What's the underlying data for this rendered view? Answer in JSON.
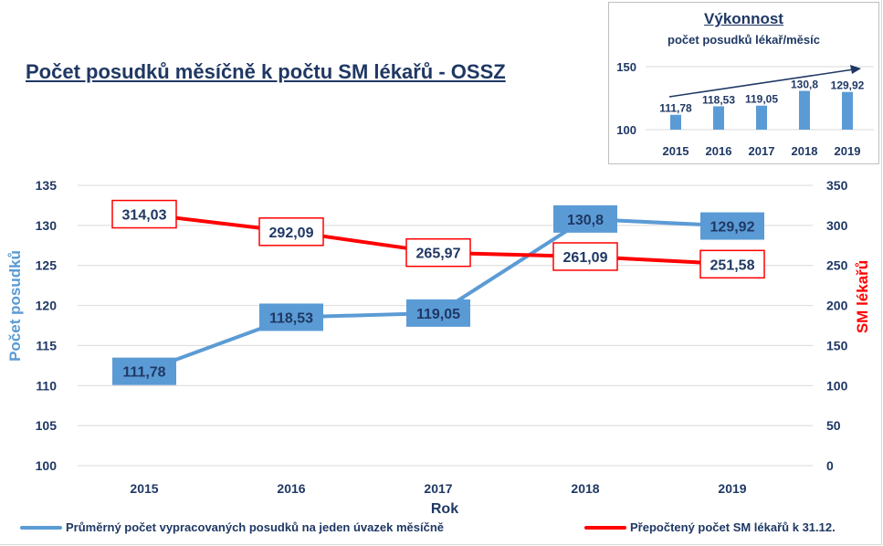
{
  "title": "Počet posudků měsíčně k počtu SM lékařů - OSSZ",
  "colors": {
    "blue": "#5b9bd5",
    "red": "#ff0000",
    "navy": "#1f3864",
    "grid": "#d9d9d9"
  },
  "chart_data": [
    {
      "type": "line",
      "categories": [
        "2015",
        "2016",
        "2017",
        "2018",
        "2019"
      ],
      "series": [
        {
          "name": "Průměrný počet vypracovaných posudků na jeden úvazek měsíčně",
          "axis": "left",
          "color": "#5b9bd5",
          "values": [
            111.78,
            118.53,
            119.05,
            130.8,
            129.92
          ],
          "labels": [
            "111,78",
            "118,53",
            "119,05",
            "130,8",
            "129,92"
          ]
        },
        {
          "name": "Přepočtený počet SM lékařů k 31.12.",
          "axis": "right",
          "color": "#ff0000",
          "values": [
            314.03,
            292.09,
            265.97,
            261.09,
            251.58
          ],
          "labels": [
            "314,03",
            "292,09",
            "265,97",
            "261,09",
            "251,58"
          ]
        }
      ],
      "xlabel": "Rok",
      "ylabel": "Počet posudků",
      "y2label": "SM lékařů",
      "ylim": [
        100,
        135
      ],
      "y2lim": [
        0,
        350
      ],
      "yticks": [
        "100",
        "105",
        "110",
        "115",
        "120",
        "125",
        "130",
        "135"
      ],
      "y2ticks": [
        "0",
        "50",
        "100",
        "150",
        "200",
        "250",
        "300",
        "350"
      ],
      "grid": true,
      "legend": "bottom"
    },
    {
      "type": "bar",
      "title": "Výkonnost",
      "subtitle": "počet posudků lékař/měsíc",
      "categories": [
        "2015",
        "2016",
        "2017",
        "2018",
        "2019"
      ],
      "values": [
        111.78,
        118.53,
        119.05,
        130.8,
        129.92
      ],
      "labels": [
        "111,78",
        "118,53",
        "119,05",
        "130,8",
        "129,92"
      ],
      "yticks": [
        "100",
        "150"
      ],
      "ylim": [
        100,
        150
      ],
      "trend_arrow": true
    }
  ],
  "legend_items": [
    "Průměrný počet vypracovaných posudků na jeden úvazek měsíčně",
    "Přepočtený počet SM lékařů k 31.12."
  ]
}
